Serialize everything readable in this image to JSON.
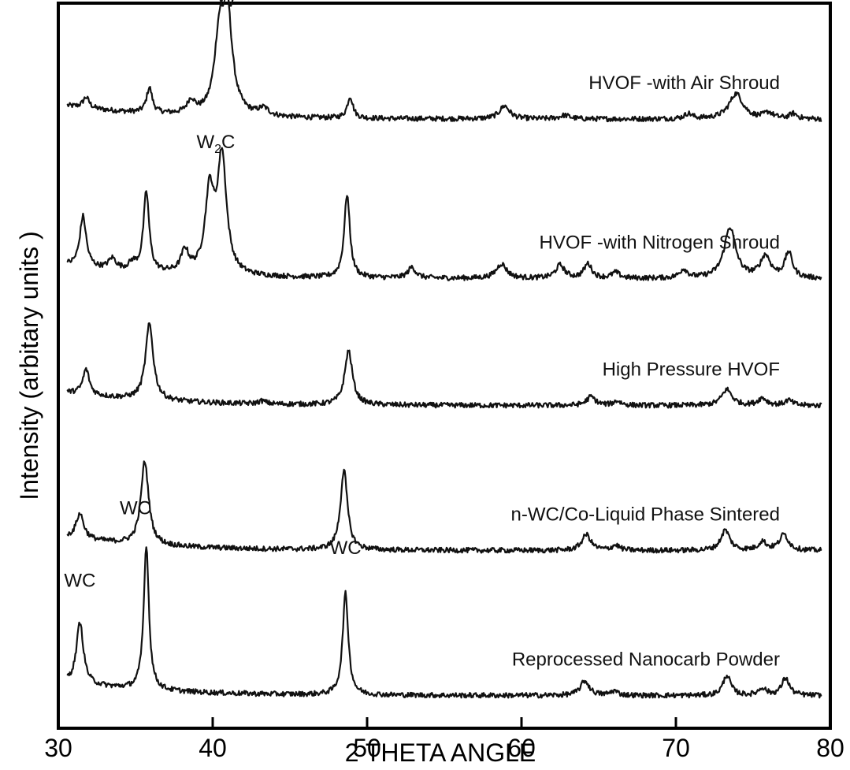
{
  "chart_data": {
    "type": "line",
    "xlabel": "2 THETA ANGLE",
    "ylabel": "Intensity (arbitary units )",
    "xlim": [
      30,
      80
    ],
    "xticks": [
      30,
      40,
      50,
      60,
      70,
      80
    ],
    "xtick_labels": [
      "30",
      "40",
      "50",
      "60",
      "70",
      "80"
    ],
    "grid": false,
    "series": [
      {
        "name": "HVOF -with Air Shroud",
        "baseline": 0.84,
        "peaks": [
          [
            31.8,
            0.015,
            0.25
          ],
          [
            35.9,
            0.035,
            0.22
          ],
          [
            38.6,
            0.018,
            0.3
          ],
          [
            40.4,
            0.08,
            0.35
          ],
          [
            40.9,
            0.155,
            0.4
          ],
          [
            43.3,
            0.01,
            0.4
          ],
          [
            48.9,
            0.03,
            0.22
          ],
          [
            58.9,
            0.018,
            0.4
          ],
          [
            62.8,
            0.005,
            0.4
          ],
          [
            70.8,
            0.007,
            0.3
          ],
          [
            73.9,
            0.035,
            0.55
          ],
          [
            76.0,
            0.008,
            0.35
          ],
          [
            77.6,
            0.007,
            0.3
          ]
        ]
      },
      {
        "name": "HVOF -with Nitrogen Shroud",
        "baseline": 0.62,
        "peaks": [
          [
            31.6,
            0.07,
            0.25
          ],
          [
            33.5,
            0.015,
            0.3
          ],
          [
            34.8,
            0.01,
            0.3
          ],
          [
            35.7,
            0.11,
            0.22
          ],
          [
            38.2,
            0.03,
            0.3
          ],
          [
            39.8,
            0.11,
            0.35
          ],
          [
            40.6,
            0.16,
            0.35
          ],
          [
            48.7,
            0.115,
            0.22
          ],
          [
            52.9,
            0.015,
            0.3
          ],
          [
            58.7,
            0.02,
            0.4
          ],
          [
            62.5,
            0.018,
            0.35
          ],
          [
            64.3,
            0.02,
            0.3
          ],
          [
            66.1,
            0.008,
            0.3
          ],
          [
            70.5,
            0.012,
            0.3
          ],
          [
            73.5,
            0.07,
            0.45
          ],
          [
            75.8,
            0.03,
            0.4
          ],
          [
            77.3,
            0.035,
            0.3
          ]
        ]
      },
      {
        "name": "High Pressure HVOF",
        "baseline": 0.445,
        "peaks": [
          [
            31.8,
            0.035,
            0.25
          ],
          [
            35.9,
            0.105,
            0.3
          ],
          [
            43.2,
            0.004,
            0.3
          ],
          [
            48.8,
            0.075,
            0.3
          ],
          [
            64.5,
            0.012,
            0.35
          ],
          [
            66.2,
            0.006,
            0.3
          ],
          [
            73.3,
            0.022,
            0.4
          ],
          [
            75.6,
            0.01,
            0.35
          ],
          [
            77.3,
            0.007,
            0.3
          ]
        ]
      },
      {
        "name": "n-WC/Co-Liquid Phase Sintered",
        "baseline": 0.245,
        "peaks": [
          [
            31.4,
            0.035,
            0.3
          ],
          [
            35.6,
            0.115,
            0.3
          ],
          [
            48.5,
            0.11,
            0.27
          ],
          [
            64.2,
            0.022,
            0.35
          ],
          [
            66.1,
            0.007,
            0.3
          ],
          [
            73.2,
            0.028,
            0.35
          ],
          [
            75.6,
            0.012,
            0.3
          ],
          [
            77.0,
            0.022,
            0.35
          ]
        ]
      },
      {
        "name": "Reprocessed Nanocarb Powder",
        "baseline": 0.045,
        "peaks": [
          [
            31.4,
            0.085,
            0.27
          ],
          [
            35.7,
            0.2,
            0.2
          ],
          [
            48.6,
            0.14,
            0.22
          ],
          [
            64.1,
            0.02,
            0.35
          ],
          [
            66.0,
            0.006,
            0.3
          ],
          [
            73.3,
            0.028,
            0.3
          ],
          [
            75.6,
            0.01,
            0.3
          ],
          [
            77.1,
            0.024,
            0.3
          ]
        ]
      }
    ],
    "peak_annotations": [
      {
        "text": "W",
        "sub": "",
        "tail": "",
        "x": 40.9,
        "y": 0.995
      },
      {
        "text": "W",
        "sub": "2",
        "tail": "C",
        "x": 40.2,
        "y": 0.8
      },
      {
        "text": "WC",
        "sub": "",
        "tail": "",
        "x": 31.4,
        "y": 0.195
      },
      {
        "text": "WC",
        "sub": "",
        "tail": "",
        "x": 35.0,
        "y": 0.295
      },
      {
        "text": "WC",
        "sub": "",
        "tail": "",
        "x": 48.6,
        "y": 0.24
      }
    ]
  }
}
